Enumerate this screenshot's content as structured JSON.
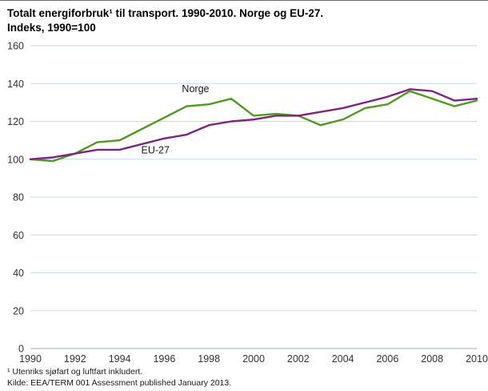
{
  "page": {
    "title_line1": "Totalt energiforbruk¹ til transport. 1990-2010. Norge og EU-27.",
    "title_line2": "Indeks, 1990=100",
    "footnote1": "¹ Utenriks sjøfart og luftfart inkludert.",
    "footnote2": "Kilde: EEA/TERM 001 Assessment published January 2013."
  },
  "chart_data": {
    "type": "line",
    "title": "Totalt energiforbruk¹ til transport. 1990-2010. Norge og EU-27. Indeks, 1990=100",
    "xlabel": "",
    "ylabel": "",
    "x": [
      1990,
      1991,
      1992,
      1993,
      1994,
      1995,
      1996,
      1997,
      1998,
      1999,
      2000,
      2001,
      2002,
      2003,
      2004,
      2005,
      2006,
      2007,
      2008,
      2009,
      2010
    ],
    "series": [
      {
        "name": "Norge",
        "color": "#4f9a21",
        "values": [
          100,
          99,
          103,
          109,
          110,
          116,
          122,
          128,
          129,
          132,
          123,
          124,
          123,
          118,
          121,
          127,
          129,
          136,
          132,
          128,
          131
        ]
      },
      {
        "name": "EU-27",
        "color": "#7c2581",
        "values": [
          100,
          101,
          103,
          105,
          105,
          108,
          111,
          113,
          118,
          120,
          121,
          123,
          123,
          125,
          127,
          130,
          133,
          137,
          136,
          131,
          132
        ]
      }
    ],
    "ylim": [
      0,
      160
    ],
    "ytick_step": 20,
    "xticks": [
      1990,
      1992,
      1994,
      1996,
      1998,
      2000,
      2002,
      2004,
      2006,
      2008,
      2010
    ],
    "grid": true,
    "grid_color": "#c6dbe6",
    "axis_color": "#9ab2bf",
    "legend_position": "inline",
    "labels": [
      {
        "text": "Norge",
        "year": 1997.4,
        "value": 135.5
      },
      {
        "text": "EU-27",
        "year": 1995.6,
        "value": 103.0
      }
    ]
  }
}
